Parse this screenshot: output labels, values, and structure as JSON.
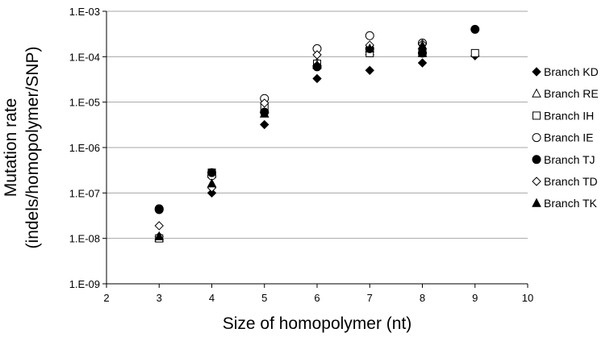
{
  "chart_data": {
    "type": "scatter",
    "title": "",
    "xlabel": "Size of homopolymer (nt)",
    "ylabel_lines": [
      "Mutation rate",
      "(indels/homopolymer/SNP)"
    ],
    "xlim": [
      2,
      10
    ],
    "ylim": [
      1e-09,
      0.001
    ],
    "yscale": "log",
    "x_ticks": [
      2,
      3,
      4,
      5,
      6,
      7,
      8,
      9,
      10
    ],
    "y_tick_labels": [
      "1.E-09",
      "1.E-08",
      "1.E-07",
      "1.E-06",
      "1.E-05",
      "1.E-04",
      "1.E-03"
    ],
    "grid": "horizontal",
    "legend_position": "right",
    "series": [
      {
        "name": "Branch KD",
        "marker": "diamond-filled",
        "x": [
          3,
          4,
          5,
          6,
          7,
          8,
          9
        ],
        "y": [
          1.1e-08,
          1e-07,
          3.2e-06,
          3.3e-05,
          5e-05,
          7.3e-05,
          0.000105
        ]
      },
      {
        "name": "Branch RE",
        "marker": "triangle-open",
        "x": [
          3,
          4,
          5,
          6,
          7,
          8
        ],
        "y": [
          1e-08,
          2.6e-07,
          7e-06,
          7.5e-05,
          0.00013,
          0.00012
        ]
      },
      {
        "name": "Branch IH",
        "marker": "square-open",
        "x": [
          3,
          4,
          5,
          6,
          7,
          8,
          9
        ],
        "y": [
          1e-08,
          2.8e-07,
          7.5e-06,
          7e-05,
          0.00012,
          0.00012,
          0.00012
        ]
      },
      {
        "name": "Branch IE",
        "marker": "circle-open",
        "x": [
          3,
          4,
          5,
          6,
          7,
          8
        ],
        "y": [
          4.5e-08,
          2.4e-07,
          1.2e-05,
          0.00015,
          0.00029,
          0.0002
        ]
      },
      {
        "name": "Branch TJ",
        "marker": "circle-filled",
        "x": [
          3,
          4,
          5,
          6,
          7,
          8,
          9
        ],
        "y": [
          4.3e-08,
          2.8e-07,
          6e-06,
          6e-05,
          0.00015,
          0.00012,
          0.0004
        ]
      },
      {
        "name": "Branch TD",
        "marker": "diamond-open",
        "x": [
          3,
          4,
          5,
          6,
          7,
          8
        ],
        "y": [
          1.9e-08,
          1.3e-07,
          9.5e-06,
          0.00011,
          0.00018,
          0.00019
        ]
      },
      {
        "name": "Branch TK",
        "marker": "triangle-filled",
        "x": [
          3,
          4,
          5,
          6,
          7,
          8
        ],
        "y": [
          1.1e-08,
          1.6e-07,
          5.5e-06,
          6.5e-05,
          0.00015,
          0.000175
        ]
      }
    ]
  }
}
